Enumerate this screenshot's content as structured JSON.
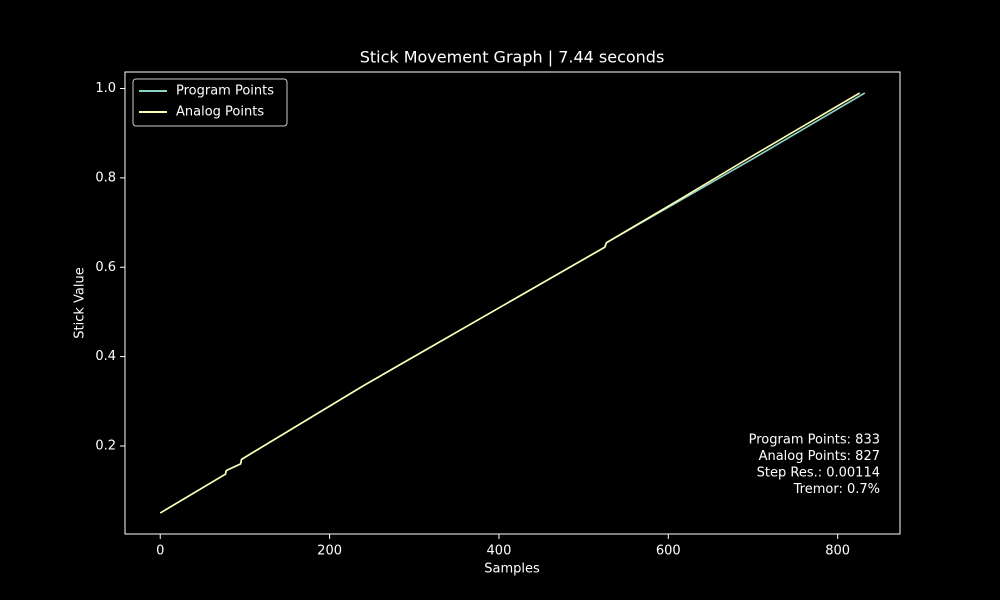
{
  "chart_data": {
    "type": "line",
    "title": "Stick Movement Graph | 7.44 seconds",
    "x_label": "Samples",
    "y_label": "Stick Value",
    "series": [
      {
        "name": "Program Points",
        "color": "#8dd3c7",
        "x": [
          0,
          77,
          78,
          95,
          96,
          240,
          525,
          527,
          610,
          700,
          832
        ],
        "values": [
          0.05,
          0.137,
          0.145,
          0.16,
          0.17,
          0.335,
          0.645,
          0.655,
          0.745,
          0.843,
          0.99
        ]
      },
      {
        "name": "Analog Points",
        "color": "#ffffb3",
        "x": [
          0,
          77,
          78,
          95,
          96,
          240,
          525,
          527,
          610,
          700,
          826
        ],
        "values": [
          0.05,
          0.137,
          0.145,
          0.16,
          0.17,
          0.335,
          0.645,
          0.655,
          0.748,
          0.85,
          0.99
        ]
      }
    ],
    "xlim": [
      -41.6,
      873.6
    ],
    "ylim": [
      0.003,
      1.037
    ],
    "xticks": [
      0,
      200,
      400,
      600,
      800
    ],
    "yticks": [
      0.2,
      0.4,
      0.6,
      0.8,
      {
        "value": 1,
        "label": "1.0"
      }
    ],
    "legend": "upper left",
    "annotations": [
      "Program Points: 833",
      "Analog Points: 827",
      "Step Res.: 0.00114",
      "Tremor: 0.7%"
    ]
  }
}
